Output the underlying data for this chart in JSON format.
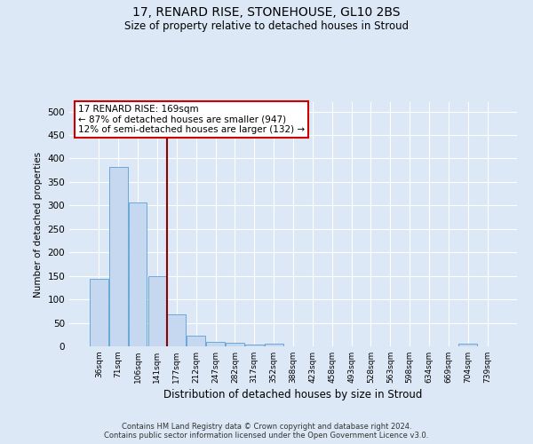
{
  "title": "17, RENARD RISE, STONEHOUSE, GL10 2BS",
  "subtitle": "Size of property relative to detached houses in Stroud",
  "xlabel": "Distribution of detached houses by size in Stroud",
  "ylabel": "Number of detached properties",
  "bar_labels": [
    "36sqm",
    "71sqm",
    "106sqm",
    "141sqm",
    "177sqm",
    "212sqm",
    "247sqm",
    "282sqm",
    "317sqm",
    "352sqm",
    "388sqm",
    "423sqm",
    "458sqm",
    "493sqm",
    "528sqm",
    "563sqm",
    "598sqm",
    "634sqm",
    "669sqm",
    "704sqm",
    "739sqm"
  ],
  "bar_values": [
    143,
    382,
    307,
    149,
    69,
    22,
    10,
    8,
    4,
    5,
    0,
    0,
    0,
    0,
    0,
    0,
    0,
    0,
    0,
    5,
    0
  ],
  "bar_color": "#c5d8f0",
  "bar_edge_color": "#5a9fd4",
  "ylim": [
    0,
    520
  ],
  "yticks": [
    0,
    50,
    100,
    150,
    200,
    250,
    300,
    350,
    400,
    450,
    500
  ],
  "vline_x_index": 4,
  "vline_color": "#8b0000",
  "annotation_text": "17 RENARD RISE: 169sqm\n← 87% of detached houses are smaller (947)\n12% of semi-detached houses are larger (132) →",
  "annotation_box_color": "#ffffff",
  "annotation_box_edge": "#cc0000",
  "footer_line1": "Contains HM Land Registry data © Crown copyright and database right 2024.",
  "footer_line2": "Contains public sector information licensed under the Open Government Licence v3.0.",
  "bg_color": "#dce8f5",
  "grid_color": "#ffffff"
}
